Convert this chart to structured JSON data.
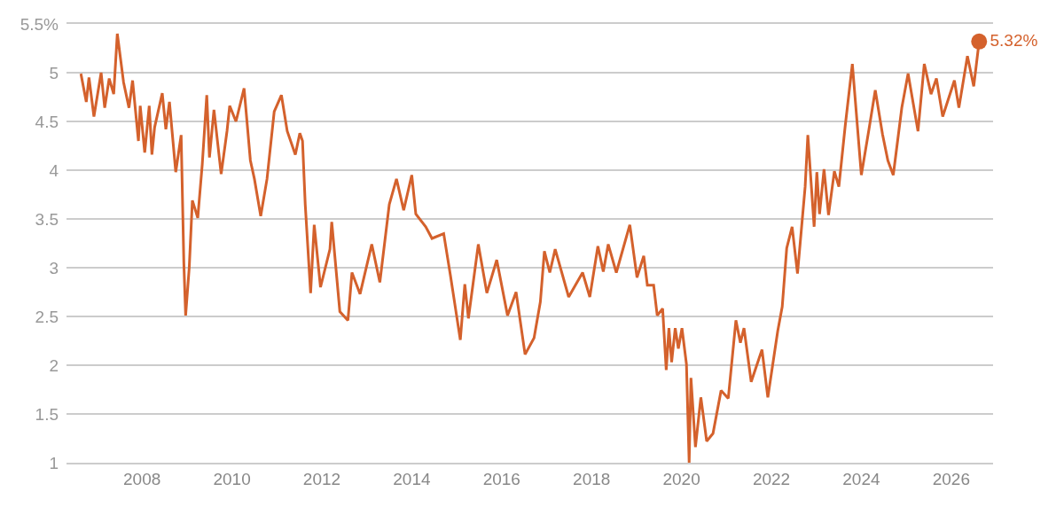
{
  "chart_data": {
    "type": "line",
    "x": [
      2006.64,
      2006.76,
      2006.82,
      2006.93,
      2007.09,
      2007.17,
      2007.27,
      2007.37,
      2007.45,
      2007.59,
      2007.71,
      2007.79,
      2007.92,
      2007.96,
      2008.06,
      2008.16,
      2008.22,
      2008.28,
      2008.45,
      2008.53,
      2008.61,
      2008.75,
      2008.87,
      2008.93,
      2008.97,
      2009.05,
      2009.12,
      2009.24,
      2009.34,
      2009.44,
      2009.5,
      2009.6,
      2009.76,
      2009.89,
      2009.95,
      2010.09,
      2010.27,
      2010.41,
      2010.5,
      2010.64,
      2010.78,
      2010.94,
      2011.1,
      2011.23,
      2011.41,
      2011.51,
      2011.57,
      2011.63,
      2011.75,
      2011.83,
      2011.97,
      2012.18,
      2012.22,
      2012.4,
      2012.58,
      2012.67,
      2012.85,
      2013.11,
      2013.29,
      2013.5,
      2013.66,
      2013.82,
      2014.0,
      2014.09,
      2014.31,
      2014.45,
      2014.71,
      2014.86,
      2015.08,
      2015.18,
      2015.26,
      2015.48,
      2015.67,
      2015.89,
      2016.13,
      2016.32,
      2016.52,
      2016.72,
      2016.86,
      2016.95,
      2017.07,
      2017.19,
      2017.49,
      2017.8,
      2017.96,
      2018.14,
      2018.26,
      2018.37,
      2018.55,
      2018.85,
      2019.01,
      2019.16,
      2019.24,
      2019.38,
      2019.46,
      2019.58,
      2019.66,
      2019.72,
      2019.78,
      2019.86,
      2019.93,
      2020.01,
      2020.11,
      2020.17,
      2020.21,
      2020.31,
      2020.43,
      2020.56,
      2020.7,
      2020.88,
      2021.04,
      2021.21,
      2021.31,
      2021.39,
      2021.55,
      2021.79,
      2021.92,
      2022.14,
      2022.24,
      2022.34,
      2022.46,
      2022.58,
      2022.75,
      2022.81,
      2022.95,
      2023.01,
      2023.07,
      2023.17,
      2023.27,
      2023.4,
      2023.5,
      2023.64,
      2023.8,
      2024.0,
      2024.17,
      2024.31,
      2024.47,
      2024.59,
      2024.71,
      2024.9,
      2025.04,
      2025.26,
      2025.4,
      2025.55,
      2025.67,
      2025.81,
      2026.07,
      2026.17,
      2026.36,
      2026.5,
      2026.62
    ],
    "series": [
      {
        "color": "#d4612c",
        "values": [
          4.99,
          4.7,
          4.95,
          4.55,
          5.0,
          4.64,
          4.94,
          4.78,
          5.4,
          4.9,
          4.64,
          4.92,
          4.3,
          4.66,
          4.18,
          4.66,
          4.16,
          4.44,
          4.79,
          4.42,
          4.7,
          3.98,
          4.36,
          3.05,
          2.51,
          3.0,
          3.69,
          3.51,
          4.06,
          4.77,
          4.13,
          4.62,
          3.96,
          4.4,
          4.66,
          4.5,
          4.84,
          4.1,
          3.91,
          3.53,
          3.91,
          4.6,
          4.77,
          4.4,
          4.16,
          4.38,
          4.3,
          3.65,
          2.74,
          3.44,
          2.8,
          3.19,
          3.47,
          2.55,
          2.46,
          2.95,
          2.73,
          3.24,
          2.85,
          3.65,
          3.91,
          3.59,
          3.95,
          3.55,
          3.42,
          3.3,
          3.35,
          2.92,
          2.26,
          2.83,
          2.48,
          3.24,
          2.74,
          3.08,
          2.51,
          2.75,
          2.11,
          2.28,
          2.65,
          3.17,
          2.95,
          3.19,
          2.7,
          2.95,
          2.7,
          3.22,
          2.96,
          3.24,
          2.95,
          3.44,
          2.9,
          3.12,
          2.82,
          2.82,
          2.51,
          2.58,
          1.95,
          2.38,
          2.03,
          2.38,
          2.17,
          2.38,
          2.01,
          1.0,
          1.87,
          1.16,
          1.67,
          1.22,
          1.3,
          1.74,
          1.66,
          2.46,
          2.23,
          2.38,
          1.83,
          2.16,
          1.67,
          2.35,
          2.6,
          3.2,
          3.42,
          2.94,
          3.83,
          4.36,
          3.42,
          3.98,
          3.55,
          4.01,
          3.54,
          3.99,
          3.83,
          4.45,
          5.09,
          3.95,
          4.42,
          4.82,
          4.37,
          4.1,
          3.95,
          4.64,
          4.99,
          4.4,
          5.09,
          4.78,
          4.94,
          4.55,
          4.92,
          4.64,
          5.17,
          4.86,
          5.32
        ]
      }
    ],
    "xlim": [
      2006.32,
      2026.93
    ],
    "ylim": [
      1,
      5.5
    ],
    "xticks": [
      2008,
      2010,
      2012,
      2014,
      2016,
      2018,
      2020,
      2022,
      2024,
      2026
    ],
    "yticks": [
      1,
      1.5,
      2,
      2.5,
      3,
      3.5,
      4,
      4.5,
      5,
      {
        "value": 5.5,
        "label": "5.5%"
      }
    ],
    "grid": "y",
    "marker": "none",
    "line_style": "solid",
    "annotations": [
      {
        "text": "5.32%",
        "x": 2026.62,
        "y": 5.32
      }
    ]
  }
}
